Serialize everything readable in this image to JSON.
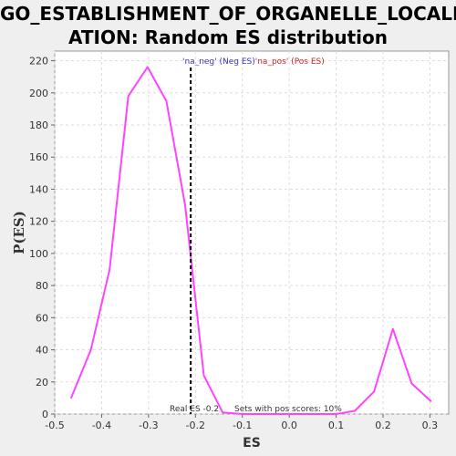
{
  "chart_data": {
    "type": "line",
    "title_lines": [
      "GO_ESTABLISHMENT_OF_ORGANELLE_LOCALIZ",
      "ATION: Random ES distribution"
    ],
    "xlabel": "ES",
    "ylabel": "P(ES)",
    "xlim": [
      -0.5,
      0.34
    ],
    "ylim": [
      0,
      226
    ],
    "xticks": [
      -0.5,
      -0.4,
      -0.3,
      -0.2,
      -0.1,
      0.0,
      0.1,
      0.2,
      0.3
    ],
    "xtick_labels": [
      "-0.5",
      "-0.4",
      "-0.3",
      "-0.2",
      "-0.1",
      "0.0",
      "0.1",
      "0.2",
      "0.3"
    ],
    "yticks": [
      0,
      20,
      40,
      60,
      80,
      100,
      120,
      140,
      160,
      180,
      200,
      220
    ],
    "ytick_labels": [
      "0",
      "20",
      "40",
      "60",
      "80",
      "100",
      "120",
      "140",
      "160",
      "180",
      "200",
      "220"
    ],
    "grid": true,
    "series": [
      {
        "color": "#ff44ff",
        "x": [
          -0.465,
          -0.423,
          -0.383,
          -0.343,
          -0.302,
          -0.262,
          -0.222,
          -0.182,
          -0.142,
          -0.1,
          -0.06,
          -0.02,
          0.02,
          0.06,
          0.1,
          0.14,
          0.181,
          0.221,
          0.261,
          0.302
        ],
        "y": [
          10,
          40,
          90,
          198,
          216,
          195,
          130,
          24,
          1,
          0,
          0,
          0,
          0,
          0,
          0,
          2,
          14,
          53,
          19,
          8
        ]
      }
    ],
    "real_es": -0.21,
    "legend": {
      "placement": "top-center",
      "part1": "'na_neg' (Neg ES)",
      "part1_color": "#3333cc",
      "part2": "'na_pos' (Pos ES)",
      "part2_color": "#cc2222"
    },
    "annotations": {
      "real_es": "Real ES -0.2",
      "pos_scores": "Sets with pos scores: 10%"
    }
  }
}
